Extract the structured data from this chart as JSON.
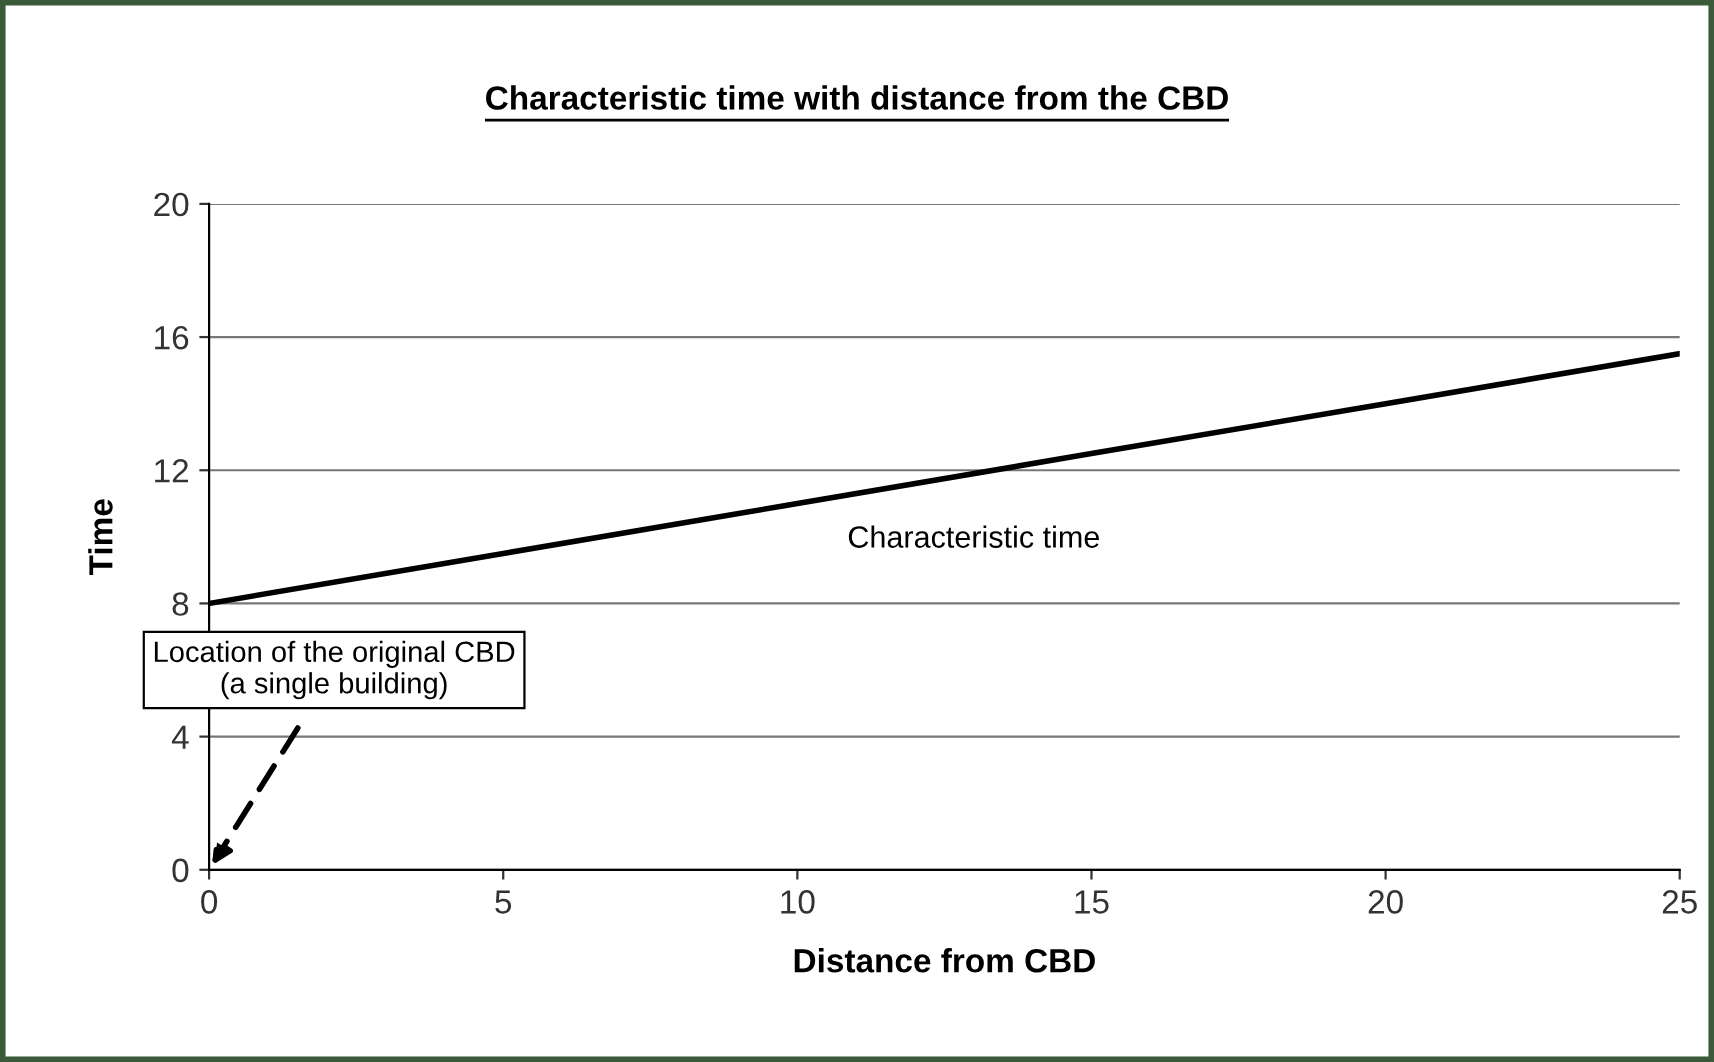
{
  "chart_data": {
    "type": "line",
    "title": "Characteristic time with distance from the CBD",
    "xlabel": "Distance from CBD",
    "ylabel": "Time",
    "x": [
      0,
      5,
      10,
      15,
      20,
      25
    ],
    "series": [
      {
        "name": "Characteristic time",
        "color": "#000000",
        "values": [
          8,
          9.5,
          11,
          12.5,
          14,
          15.5
        ]
      }
    ],
    "xlim": [
      0,
      25
    ],
    "xticks": [
      0,
      5,
      10,
      15,
      20,
      25
    ],
    "ylim": [
      0,
      20
    ],
    "yticks": [
      0,
      4,
      8,
      12,
      16,
      20
    ],
    "grid": "y",
    "marker": "none",
    "line_style": "solid",
    "annotations": [
      "Location of the original CBD\n(a single building)"
    ]
  }
}
